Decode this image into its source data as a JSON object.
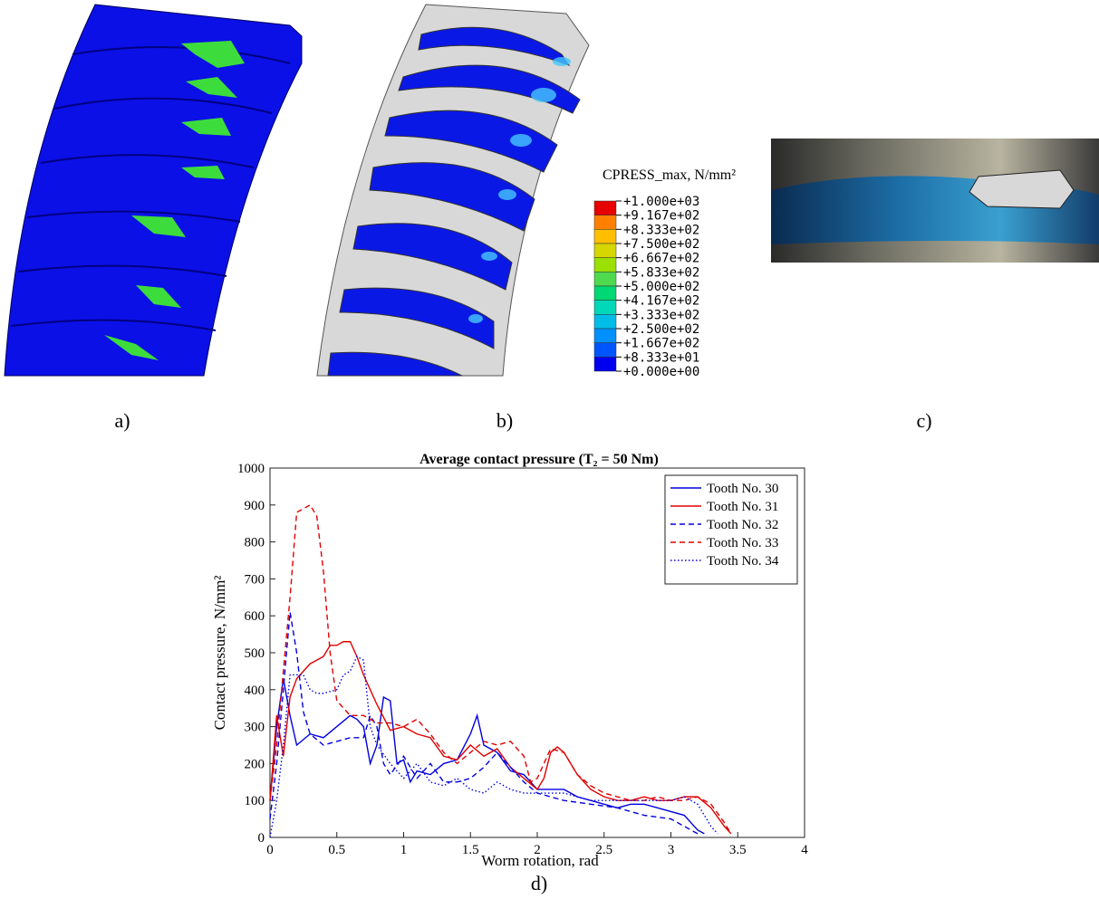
{
  "panels": {
    "a": "a)",
    "b": "b)",
    "c": "c)",
    "d": "d)"
  },
  "colorbar": {
    "title": "CPRESS_max, N/mm²",
    "labels": [
      "+1.000e+03",
      "+9.167e+02",
      "+8.333e+02",
      "+7.500e+02",
      "+6.667e+02",
      "+5.833e+02",
      "+5.000e+02",
      "+4.167e+02",
      "+3.333e+02",
      "+2.500e+02",
      "+1.667e+02",
      "+8.333e+01",
      "+0.000e+00"
    ],
    "colors": [
      "#e60000",
      "#ff8000",
      "#ffbf00",
      "#d6d600",
      "#9be000",
      "#4fd94f",
      "#00d873",
      "#00d8b8",
      "#00bde8",
      "#0090ff",
      "#0055ff",
      "#0000ee"
    ]
  },
  "chart_data": {
    "type": "line",
    "title": "Average contact pressure (T₂ = 50 Nm)",
    "x_label": "Worm rotation, rad",
    "y_label": "Contact pressure, N/mm²",
    "xlim": [
      0,
      4
    ],
    "xticks": [
      0,
      0.5,
      1,
      1.5,
      2,
      2.5,
      3,
      3.5,
      4
    ],
    "ylim": [
      0,
      1000
    ],
    "yticks": [
      0,
      100,
      200,
      300,
      400,
      500,
      600,
      700,
      800,
      900,
      1000
    ],
    "legend": "upper right",
    "series": [
      {
        "name": "Tooth No. 30",
        "color": "#0000e0",
        "dash": "solid",
        "x": [
          0,
          0.05,
          0.1,
          0.15,
          0.2,
          0.3,
          0.4,
          0.5,
          0.6,
          0.65,
          0.7,
          0.75,
          0.8,
          0.85,
          0.9,
          0.95,
          1.0,
          1.05,
          1.1,
          1.2,
          1.3,
          1.4,
          1.5,
          1.55,
          1.6,
          1.7,
          1.8,
          1.9,
          2.0,
          2.1,
          2.2,
          2.3,
          2.4,
          2.5,
          2.6,
          2.7,
          2.8,
          2.9,
          3.0,
          3.1,
          3.2,
          3.25
        ],
        "values": [
          100,
          300,
          430,
          330,
          250,
          280,
          270,
          300,
          330,
          320,
          300,
          200,
          250,
          380,
          370,
          200,
          210,
          150,
          180,
          170,
          200,
          210,
          280,
          330,
          250,
          230,
          180,
          170,
          130,
          130,
          130,
          110,
          100,
          90,
          80,
          90,
          90,
          80,
          70,
          60,
          20,
          10
        ]
      },
      {
        "name": "Tooth No. 31",
        "color": "#e00000",
        "dash": "solid",
        "x": [
          0,
          0.05,
          0.1,
          0.15,
          0.2,
          0.25,
          0.3,
          0.4,
          0.45,
          0.5,
          0.55,
          0.6,
          0.65,
          0.7,
          0.8,
          0.9,
          1.0,
          1.1,
          1.2,
          1.3,
          1.4,
          1.5,
          1.6,
          1.7,
          1.8,
          1.9,
          2.0,
          2.05,
          2.1,
          2.15,
          2.2,
          2.3,
          2.4,
          2.5,
          2.6,
          2.7,
          2.8,
          2.9,
          3.0,
          3.1,
          3.2,
          3.3,
          3.4,
          3.45
        ],
        "values": [
          100,
          330,
          220,
          380,
          430,
          450,
          470,
          490,
          520,
          520,
          530,
          530,
          490,
          440,
          360,
          290,
          300,
          280,
          270,
          220,
          210,
          250,
          220,
          240,
          190,
          160,
          130,
          160,
          230,
          245,
          230,
          170,
          130,
          110,
          100,
          100,
          110,
          100,
          100,
          110,
          110,
          80,
          30,
          10
        ]
      },
      {
        "name": "Tooth No. 32",
        "color": "#0000e0",
        "dash": "dashed",
        "x": [
          0,
          0.05,
          0.1,
          0.15,
          0.2,
          0.25,
          0.3,
          0.4,
          0.5,
          0.6,
          0.7,
          0.75,
          0.8,
          0.85,
          0.9,
          1.0,
          1.1,
          1.2,
          1.3,
          1.4,
          1.5,
          1.6,
          1.7,
          1.8,
          1.9,
          2.0,
          2.2,
          2.4,
          2.6,
          2.8,
          3.0,
          3.1,
          3.2
        ],
        "values": [
          50,
          200,
          400,
          610,
          500,
          340,
          280,
          250,
          260,
          270,
          270,
          330,
          300,
          200,
          170,
          220,
          160,
          200,
          150,
          150,
          160,
          190,
          230,
          190,
          150,
          120,
          100,
          90,
          80,
          60,
          50,
          30,
          10
        ]
      },
      {
        "name": "Tooth No. 33",
        "color": "#e00000",
        "dash": "dashed",
        "x": [
          0,
          0.05,
          0.1,
          0.15,
          0.2,
          0.25,
          0.3,
          0.35,
          0.4,
          0.45,
          0.5,
          0.6,
          0.7,
          0.8,
          0.9,
          1.0,
          1.1,
          1.2,
          1.3,
          1.4,
          1.5,
          1.6,
          1.7,
          1.8,
          1.9,
          1.95,
          2.0,
          2.1,
          2.2,
          2.3,
          2.4,
          2.5,
          2.6,
          2.7,
          2.8,
          2.9,
          3.0,
          3.1,
          3.2,
          3.3,
          3.4,
          3.45
        ],
        "values": [
          100,
          250,
          450,
          650,
          880,
          890,
          900,
          870,
          720,
          500,
          370,
          330,
          330,
          310,
          310,
          300,
          320,
          280,
          230,
          200,
          230,
          260,
          250,
          260,
          220,
          150,
          160,
          240,
          230,
          170,
          140,
          120,
          110,
          100,
          100,
          110,
          100,
          100,
          110,
          90,
          40,
          10
        ]
      },
      {
        "name": "Tooth No. 34",
        "color": "#0000e0",
        "dash": "dotted",
        "x": [
          0,
          0.05,
          0.1,
          0.15,
          0.2,
          0.25,
          0.3,
          0.35,
          0.4,
          0.5,
          0.55,
          0.6,
          0.65,
          0.7,
          0.75,
          0.8,
          0.9,
          1.0,
          1.1,
          1.2,
          1.3,
          1.4,
          1.5,
          1.6,
          1.7,
          1.8,
          1.9,
          2.0,
          2.2,
          2.4,
          2.6,
          2.8,
          3.0,
          3.1,
          3.2,
          3.3,
          3.35
        ],
        "values": [
          0,
          100,
          250,
          440,
          440,
          440,
          400,
          390,
          390,
          400,
          440,
          450,
          490,
          480,
          300,
          250,
          200,
          160,
          200,
          150,
          140,
          160,
          130,
          120,
          150,
          130,
          120,
          120,
          120,
          100,
          100,
          100,
          100,
          110,
          90,
          30,
          10
        ]
      }
    ]
  }
}
